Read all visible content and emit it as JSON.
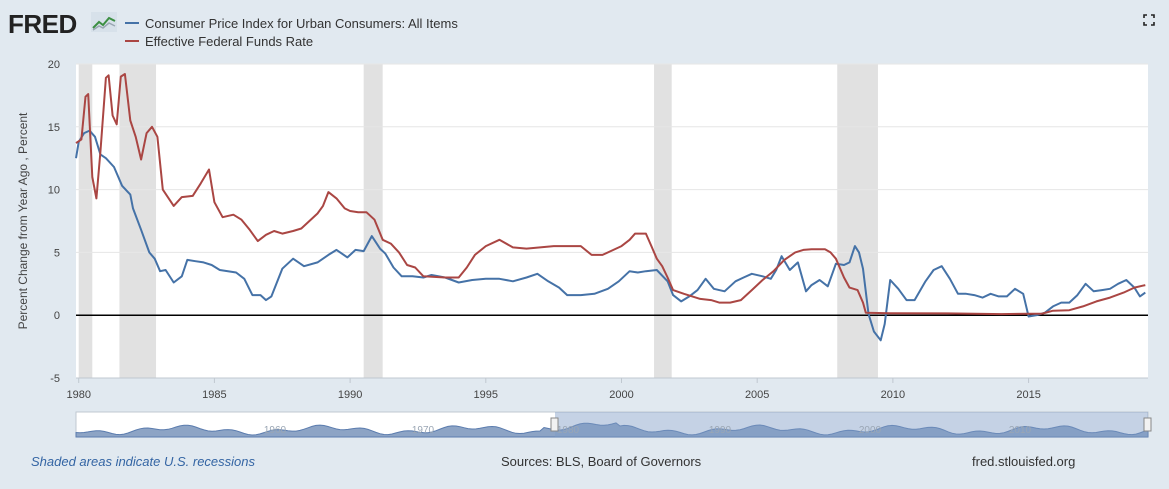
{
  "header": {
    "logo_text": "FRED",
    "logo_icon": "chart-line-icon",
    "expand_icon": "fullscreen-icon"
  },
  "legend": [
    {
      "label": "Consumer Price Index for Urban Consumers: All Items",
      "color": "#4572a7"
    },
    {
      "label": "Effective Federal Funds Rate",
      "color": "#aa4643"
    }
  ],
  "footer": {
    "recession_note": "Shaded areas indicate U.S. recessions",
    "sources": "Sources: BLS, Board of Governors",
    "site": "fred.stlouisfed.org"
  },
  "navigator": {
    "tick_labels": [
      "1960",
      "1970",
      "1980",
      "1990",
      "2000",
      "2010"
    ]
  },
  "chart_data": {
    "type": "line",
    "ylabel": "Percent Change from Year Ago , Percent",
    "xlim": [
      1979.9,
      2019.4
    ],
    "ylim": [
      -5,
      20
    ],
    "y_ticks": [
      -5,
      0,
      5,
      10,
      15,
      20
    ],
    "x_ticks": [
      1980,
      1985,
      1990,
      1995,
      2000,
      2005,
      2010,
      2015
    ],
    "zero_line": true,
    "recessions": [
      [
        1980.0,
        1980.5
      ],
      [
        1981.5,
        1982.85
      ],
      [
        1990.5,
        1991.2
      ],
      [
        2001.2,
        2001.85
      ],
      [
        2007.95,
        2009.45
      ]
    ],
    "series": [
      {
        "name": "Consumer Price Index for Urban Consumers: All Items",
        "color": "#4572a7",
        "x": [
          1979.9,
          1980.0,
          1980.2,
          1980.4,
          1980.6,
          1980.8,
          1981.0,
          1981.3,
          1981.6,
          1981.9,
          1982.0,
          1982.3,
          1982.6,
          1982.8,
          1983.0,
          1983.2,
          1983.5,
          1983.8,
          1984.0,
          1984.3,
          1984.6,
          1984.9,
          1985.2,
          1985.5,
          1985.8,
          1986.1,
          1986.4,
          1986.7,
          1986.9,
          1987.1,
          1987.5,
          1987.9,
          1988.3,
          1988.8,
          1989.2,
          1989.5,
          1989.9,
          1990.2,
          1990.5,
          1990.8,
          1991.1,
          1991.3,
          1991.6,
          1991.9,
          1992.3,
          1992.7,
          1993.0,
          1993.5,
          1994.0,
          1994.5,
          1995.0,
          1995.5,
          1996.0,
          1996.5,
          1996.9,
          1997.3,
          1997.7,
          1998.0,
          1998.5,
          1999.0,
          1999.5,
          1999.9,
          2000.3,
          2000.6,
          2000.9,
          2001.3,
          2001.7,
          2001.9,
          2002.2,
          2002.5,
          2002.8,
          2003.1,
          2003.4,
          2003.8,
          2004.2,
          2004.5,
          2004.8,
          2005.2,
          2005.5,
          2005.7,
          2005.9,
          2006.2,
          2006.5,
          2006.8,
          2007.0,
          2007.3,
          2007.6,
          2007.9,
          2008.2,
          2008.4,
          2008.6,
          2008.75,
          2008.9,
          2009.1,
          2009.3,
          2009.55,
          2009.7,
          2009.9,
          2010.2,
          2010.5,
          2010.8,
          2011.2,
          2011.5,
          2011.8,
          2012.1,
          2012.4,
          2012.7,
          2013.0,
          2013.3,
          2013.6,
          2013.9,
          2014.2,
          2014.5,
          2014.8,
          2015.0,
          2015.3,
          2015.6,
          2015.9,
          2016.2,
          2016.5,
          2016.8,
          2017.1,
          2017.4,
          2017.7,
          2018.0,
          2018.3,
          2018.6,
          2018.9,
          2019.1,
          2019.3
        ],
        "y": [
          12.5,
          13.8,
          14.5,
          14.7,
          14.2,
          12.8,
          12.5,
          11.8,
          10.3,
          9.6,
          8.5,
          6.8,
          5.0,
          4.5,
          3.5,
          3.6,
          2.6,
          3.1,
          4.4,
          4.3,
          4.2,
          4.0,
          3.6,
          3.5,
          3.4,
          2.9,
          1.6,
          1.6,
          1.2,
          1.5,
          3.7,
          4.5,
          3.9,
          4.2,
          4.8,
          5.2,
          4.6,
          5.2,
          5.1,
          6.3,
          5.3,
          4.9,
          3.8,
          3.1,
          3.1,
          3.0,
          3.2,
          3.0,
          2.6,
          2.8,
          2.9,
          2.9,
          2.7,
          3.0,
          3.3,
          2.7,
          2.2,
          1.6,
          1.6,
          1.7,
          2.1,
          2.7,
          3.5,
          3.4,
          3.5,
          3.6,
          2.7,
          1.6,
          1.1,
          1.5,
          2.0,
          2.9,
          2.1,
          1.9,
          2.7,
          3.0,
          3.3,
          3.1,
          2.9,
          3.6,
          4.7,
          3.6,
          4.2,
          1.9,
          2.4,
          2.8,
          2.3,
          4.1,
          4.0,
          4.2,
          5.5,
          5.0,
          3.7,
          0.1,
          -1.3,
          -2.0,
          -0.7,
          2.8,
          2.1,
          1.2,
          1.2,
          2.7,
          3.6,
          3.9,
          2.9,
          1.7,
          1.7,
          1.6,
          1.4,
          1.7,
          1.5,
          1.5,
          2.1,
          1.7,
          -0.1,
          0.0,
          0.2,
          0.7,
          1.0,
          1.0,
          1.6,
          2.5,
          1.9,
          2.0,
          2.1,
          2.5,
          2.8,
          2.2,
          1.5,
          1.8
        ]
      },
      {
        "name": "Effective Federal Funds Rate",
        "color": "#aa4643",
        "x": [
          1979.9,
          1980.1,
          1980.25,
          1980.35,
          1980.5,
          1980.65,
          1980.8,
          1981.0,
          1981.1,
          1981.25,
          1981.4,
          1981.55,
          1981.7,
          1981.9,
          1982.1,
          1982.3,
          1982.5,
          1982.7,
          1982.9,
          1983.1,
          1983.5,
          1983.8,
          1984.2,
          1984.5,
          1984.8,
          1985.0,
          1985.3,
          1985.7,
          1986.0,
          1986.3,
          1986.6,
          1986.9,
          1987.2,
          1987.5,
          1987.9,
          1988.2,
          1988.5,
          1988.8,
          1989.0,
          1989.2,
          1989.5,
          1989.8,
          1990.0,
          1990.3,
          1990.6,
          1990.9,
          1991.2,
          1991.5,
          1991.8,
          1992.1,
          1992.4,
          1992.7,
          1993.5,
          1994.0,
          1994.3,
          1994.6,
          1995.0,
          1995.5,
          1996.0,
          1996.5,
          1997.0,
          1997.5,
          1998.0,
          1998.5,
          1998.9,
          1999.3,
          1999.7,
          2000.0,
          2000.3,
          2000.5,
          2000.9,
          2001.1,
          2001.3,
          2001.5,
          2001.7,
          2001.9,
          2002.3,
          2002.9,
          2003.3,
          2003.6,
          2004.0,
          2004.4,
          2004.8,
          2005.2,
          2005.6,
          2006.0,
          2006.4,
          2006.7,
          2007.0,
          2007.5,
          2007.7,
          2007.9,
          2008.2,
          2008.4,
          2008.7,
          2008.9,
          2009.0,
          2010.0,
          2012.0,
          2014.0,
          2015.5,
          2015.9,
          2016.5,
          2017.0,
          2017.5,
          2018.0,
          2018.5,
          2018.9,
          2019.3
        ],
        "y": [
          13.7,
          14.0,
          17.4,
          17.6,
          11.0,
          9.3,
          13.0,
          18.9,
          19.1,
          15.9,
          15.2,
          19.0,
          19.2,
          15.5,
          14.2,
          12.4,
          14.5,
          15.0,
          14.2,
          10.0,
          8.7,
          9.4,
          9.5,
          10.5,
          11.6,
          9.0,
          7.8,
          8.0,
          7.6,
          6.8,
          5.9,
          6.4,
          6.7,
          6.5,
          6.7,
          6.9,
          7.5,
          8.1,
          8.7,
          9.8,
          9.3,
          8.5,
          8.3,
          8.2,
          8.2,
          7.6,
          6.0,
          5.7,
          5.0,
          4.0,
          3.8,
          3.1,
          3.0,
          3.0,
          3.8,
          4.8,
          5.5,
          6.0,
          5.4,
          5.3,
          5.4,
          5.5,
          5.5,
          5.5,
          4.8,
          4.8,
          5.2,
          5.5,
          6.0,
          6.5,
          6.5,
          5.5,
          4.5,
          3.9,
          3.0,
          2.0,
          1.7,
          1.3,
          1.2,
          1.0,
          1.0,
          1.2,
          2.0,
          2.8,
          3.5,
          4.4,
          5.0,
          5.2,
          5.25,
          5.25,
          5.0,
          4.5,
          3.0,
          2.2,
          2.0,
          1.0,
          0.2,
          0.15,
          0.14,
          0.09,
          0.13,
          0.36,
          0.4,
          0.7,
          1.1,
          1.4,
          1.8,
          2.2,
          2.4
        ]
      }
    ]
  }
}
